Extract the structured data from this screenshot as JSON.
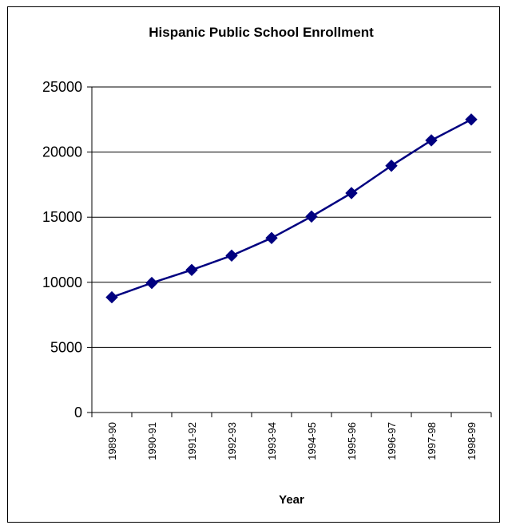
{
  "chart_data": {
    "type": "line",
    "title": "Hispanic Public School Enrollment",
    "xlabel": "Year",
    "ylabel": "",
    "categories": [
      "1989-90",
      "1990-91",
      "1991-92",
      "1992-93",
      "1993-94",
      "1994-95",
      "1995-96",
      "1996-97",
      "1997-98",
      "1998-99"
    ],
    "series": [
      {
        "values": [
          8850,
          9950,
          10950,
          12050,
          13400,
          15050,
          16850,
          18950,
          20900,
          22500
        ]
      }
    ],
    "ylim": [
      0,
      25000
    ],
    "yticks": [
      "0",
      "5000",
      "10000",
      "15000",
      "20000",
      "25000"
    ],
    "grid": true,
    "legend": "none",
    "colors": {
      "line": "#000080",
      "marker": "#000080",
      "grid": "#000000"
    }
  }
}
